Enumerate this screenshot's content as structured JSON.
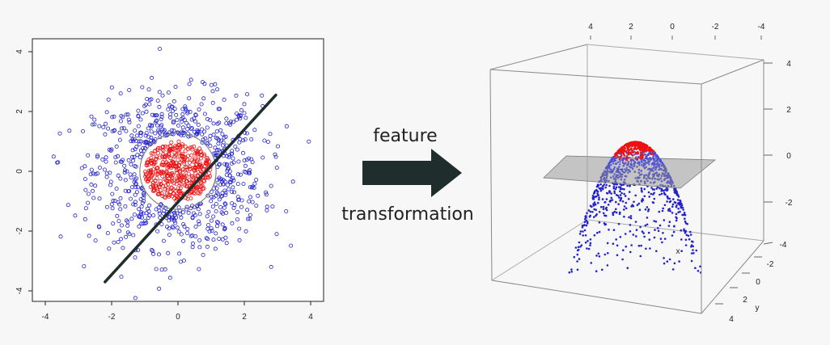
{
  "left_plot": {
    "x_ticks": [
      "-4",
      "-2",
      "0",
      "2",
      "4"
    ],
    "y_ticks": [
      "4",
      "2",
      "0",
      "-2",
      "-4"
    ],
    "x_range": [
      -4.5,
      4.5
    ],
    "y_range": [
      -4.4,
      4.4
    ],
    "outer_class_color": "#2222cc",
    "inner_class_color": "#ee1111",
    "inner_radius": 1.0,
    "boundary_circle_radius": 1.15,
    "separator_line": {
      "from": [
        -2.2,
        -3.7
      ],
      "to": [
        2.95,
        2.55
      ]
    }
  },
  "arrow": {
    "label_line1": "feature",
    "label_line2": "transformation",
    "color": "#1f2d2d"
  },
  "right_plot": {
    "top_ticks": [
      "4",
      "2",
      "0",
      "-2",
      "-4"
    ],
    "right_ticks": [
      "4",
      "2",
      "0",
      "-2"
    ],
    "y_axis_ticks": [
      "-4",
      "-2",
      "0",
      "2",
      "4"
    ],
    "x_axis_label": "x",
    "y_axis_label": "y",
    "plane_color": "#9a9a9a",
    "outer_class_color": "#2222cc",
    "inner_class_color": "#ee1111"
  }
}
